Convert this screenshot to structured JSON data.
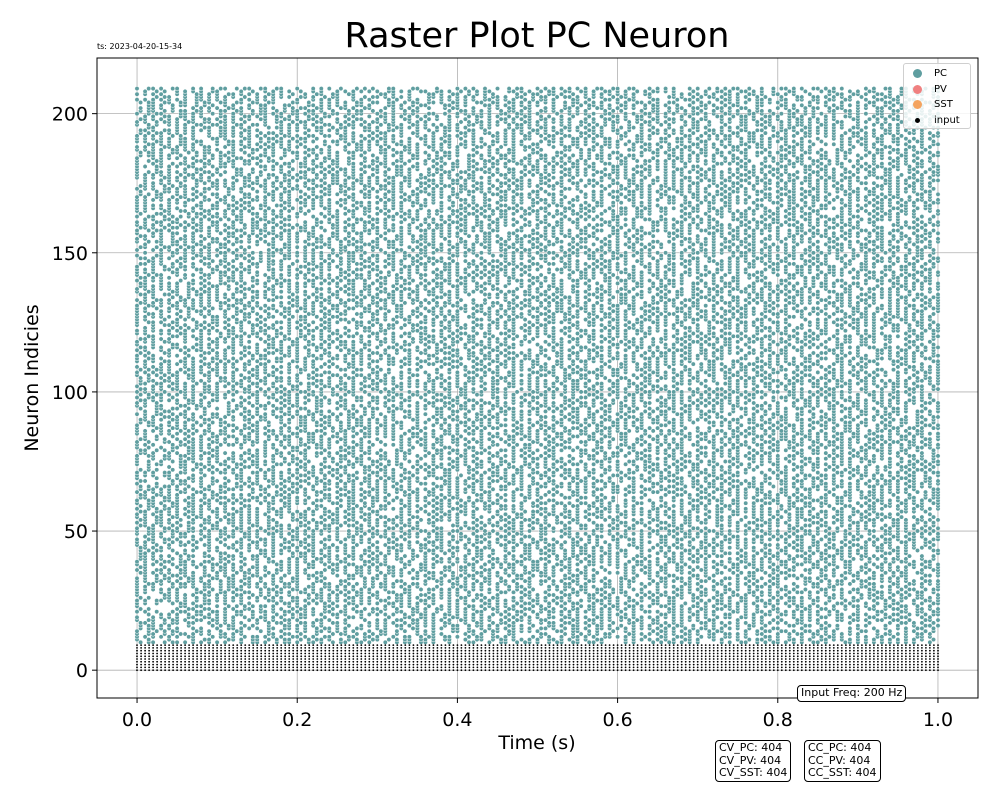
{
  "timestamp": "ts: 2023-04-20-15-34",
  "chart_data": {
    "type": "scatter",
    "title": "Raster Plot PC Neuron",
    "xlabel": "Time (s)",
    "ylabel": "Neuron Indicies",
    "xlim": [
      -0.05,
      1.05
    ],
    "ylim": [
      -10,
      220
    ],
    "xticks": [
      0.0,
      0.2,
      0.4,
      0.6,
      0.8,
      1.0
    ],
    "xtick_labels": [
      "0.0",
      "0.2",
      "0.4",
      "0.6",
      "0.8",
      "1.0"
    ],
    "yticks": [
      0,
      50,
      100,
      150,
      200
    ],
    "ytick_labels": [
      "0",
      "50",
      "100",
      "150",
      "200"
    ],
    "grid": true,
    "legend_placement": "top-right",
    "series": [
      {
        "name": "PC",
        "color": "#5f9ea0",
        "neuron_range": [
          10,
          209
        ],
        "t_range": [
          0.0,
          1.0
        ]
      },
      {
        "name": "PV",
        "color": "#f08080",
        "neuron_range": [],
        "t_range": []
      },
      {
        "name": "SST",
        "color": "#f4a460",
        "neuron_range": [],
        "t_range": []
      },
      {
        "name": "input",
        "color": "#000000",
        "neuron_range": [
          0,
          9
        ],
        "t_range": [
          0.0,
          1.0
        ]
      }
    ]
  },
  "annotations": {
    "input_freq": "Input Freq: 200 Hz",
    "cv_lines": [
      "CV_PC: 404",
      "CV_PV: 404",
      "CV_SST: 404"
    ],
    "cc_lines": [
      "CC_PC: 404",
      "CC_PV: 404",
      "CC_SST: 404"
    ]
  }
}
